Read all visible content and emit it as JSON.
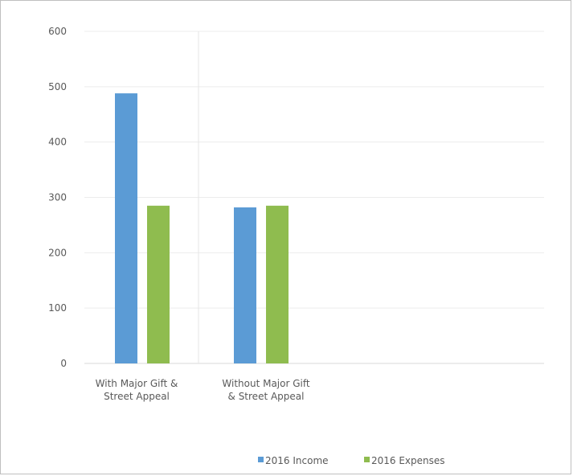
{
  "chart_data": {
    "type": "bar",
    "categories": [
      [
        "With Major Gift &",
        "Street Appeal"
      ],
      [
        "Without Major Gift",
        "& Street Appeal"
      ]
    ],
    "series": [
      {
        "name": "2016 Income",
        "values": [
          488,
          282
        ],
        "color": "#5b9bd5"
      },
      {
        "name": "2016 Expenses",
        "values": [
          285,
          285
        ],
        "color": "#8fbc4f"
      }
    ],
    "ylim": [
      0,
      600
    ],
    "yticks": [
      0,
      100,
      200,
      300,
      400,
      500,
      600
    ],
    "grid": true,
    "legend": "bottom-center"
  }
}
